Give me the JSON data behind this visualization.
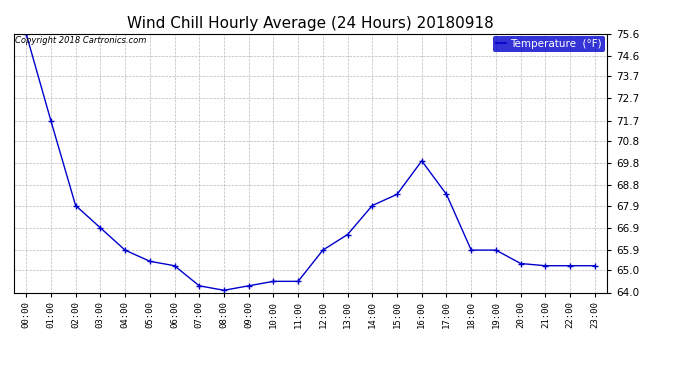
{
  "title": "Wind Chill Hourly Average (24 Hours) 20180918",
  "copyright_text": "Copyright 2018 Cartronics.com",
  "legend_label": "Temperature  (°F)",
  "hours": [
    0,
    1,
    2,
    3,
    4,
    5,
    6,
    7,
    8,
    9,
    10,
    11,
    12,
    13,
    14,
    15,
    16,
    17,
    18,
    19,
    20,
    21,
    22,
    23
  ],
  "x_labels": [
    "00:00",
    "01:00",
    "02:00",
    "03:00",
    "04:00",
    "05:00",
    "06:00",
    "07:00",
    "08:00",
    "09:00",
    "10:00",
    "11:00",
    "12:00",
    "13:00",
    "14:00",
    "15:00",
    "16:00",
    "17:00",
    "18:00",
    "19:00",
    "20:00",
    "21:00",
    "22:00",
    "23:00"
  ],
  "values": [
    75.6,
    71.7,
    67.9,
    66.9,
    65.9,
    65.4,
    65.2,
    64.3,
    64.1,
    64.3,
    64.5,
    64.5,
    65.9,
    66.6,
    67.9,
    68.4,
    69.9,
    68.4,
    65.9,
    65.9,
    65.3,
    65.2,
    65.2,
    65.2
  ],
  "ylim_min": 64.0,
  "ylim_max": 75.6,
  "yticks": [
    64.0,
    65.0,
    65.9,
    66.9,
    67.9,
    68.8,
    69.8,
    70.8,
    71.7,
    72.7,
    73.7,
    74.6,
    75.6
  ],
  "line_color": "#0000cc",
  "marker_color": "#0000cc",
  "bg_color": "#ffffff",
  "grid_color": "#bbbbbb",
  "title_fontsize": 11,
  "axis_label_fontsize": 7,
  "legend_bg_color": "#0000cc",
  "legend_text_color": "#ffffff"
}
